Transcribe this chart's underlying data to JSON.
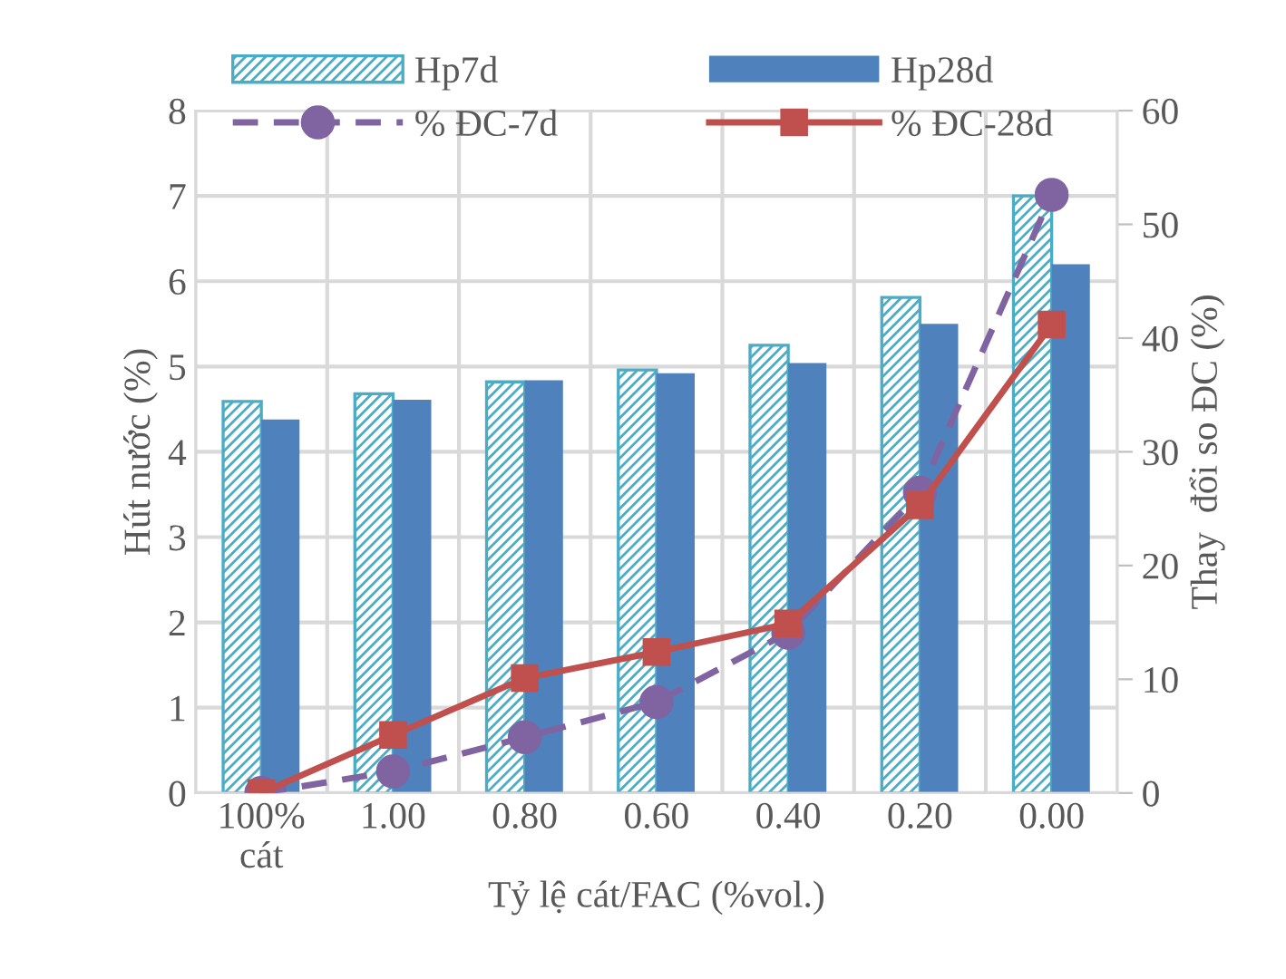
{
  "chart_data": {
    "type": "bar",
    "categories": [
      "100%\ncát",
      "1.00",
      "0.80",
      "0.60",
      "0.40",
      "0.20",
      "0.00"
    ],
    "xlabel": "Tỷ lệ cát/FAC (%vol.)",
    "ylabel": "Hút nước (%)",
    "y2label": "Thay  đổi so ĐC (%)",
    "series": [
      {
        "name": "Hp7d",
        "color": "#4bacc6",
        "values": [
          4.59,
          4.68,
          4.82,
          4.96,
          5.25,
          5.81,
          7.0
        ]
      },
      {
        "name": "Hp28d",
        "color": "#4f81bd",
        "values": [
          4.38,
          4.61,
          4.84,
          4.92,
          5.04,
          5.5,
          6.2
        ]
      },
      {
        "name": "% ĐC-7d",
        "type": "line",
        "axis": "y2",
        "color": "#8064a2",
        "marker": "circle",
        "line_style": "dashed",
        "values": [
          0,
          1.9,
          4.9,
          8.0,
          14.1,
          26.4,
          52.6
        ]
      },
      {
        "name": "% ĐC-28d",
        "type": "line",
        "axis": "y2",
        "color": "#c0504d",
        "marker": "square",
        "line_style": "solid",
        "values": [
          0,
          5.1,
          10.1,
          12.4,
          14.9,
          25.3,
          41.2
        ]
      }
    ],
    "ylim": [
      0,
      8
    ],
    "yticks": [
      0,
      1,
      2,
      3,
      4,
      5,
      6,
      7,
      8
    ],
    "y2lim": [
      0,
      60
    ],
    "y2ticks": [
      0,
      10,
      20,
      30,
      40,
      50,
      60
    ],
    "grid": true,
    "legend": "top"
  }
}
